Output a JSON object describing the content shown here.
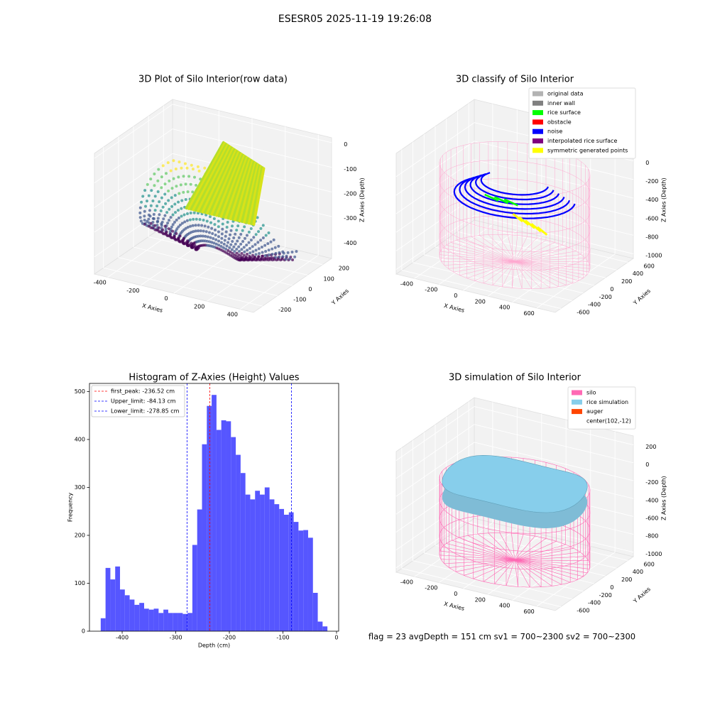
{
  "title": "ESESR05 2025-11-19 19:26:08",
  "footer": "flag = 23  avgDepth = 151 cm  sv1 = 700~2300  sv2 = 700~2300",
  "chart_data": [
    {
      "type": "scatter3d",
      "title": "3D Plot of Silo Interior(row data)",
      "xlabel": "X Axies",
      "ylabel": "Y Axies",
      "zlabel": "Z Axies (Depth)",
      "xlim": [
        -480,
        480
      ],
      "ylim": [
        -260,
        260
      ],
      "zlim": [
        -470,
        20
      ],
      "xticks": [
        -400,
        -200,
        0,
        200,
        400
      ],
      "yticks": [
        -200,
        -100,
        0,
        100,
        200
      ],
      "zticks": [
        -400,
        -300,
        -200,
        -100,
        0
      ]
    },
    {
      "type": "classify3d",
      "title": "3D classify of Silo Interior",
      "xlabel": "X Axies",
      "ylabel": "Y Axies",
      "zlabel": "Z Axies (Depth)",
      "xlim": [
        -550,
        750
      ],
      "ylim": [
        -700,
        700
      ],
      "zlim": [
        -1050,
        250
      ],
      "xticks": [
        -400,
        -200,
        0,
        200,
        400,
        600
      ],
      "yticks": [
        -600,
        -400,
        -200,
        0,
        200,
        400,
        600
      ],
      "zticks": [
        -1000,
        -800,
        -600,
        -400,
        -200,
        0
      ],
      "legend": [
        {
          "name": "original data",
          "color": "#b3b3b3"
        },
        {
          "name": "inner wall",
          "color": "#808080"
        },
        {
          "name": "rice surface",
          "color": "#00ff00"
        },
        {
          "name": "obstacle",
          "color": "#ff0000"
        },
        {
          "name": "noise",
          "color": "#0000ff"
        },
        {
          "name": "interpolated rice surface",
          "color": "#800080"
        },
        {
          "name": "symmetric generated points",
          "color": "#ffff00"
        }
      ]
    },
    {
      "type": "histogram",
      "title": "Histogram of Z-Axies (Height) Values",
      "xlabel": "Depth (cm)",
      "ylabel": "Frequency",
      "color": "#4d4dff",
      "bins": [
        -440,
        -431,
        -422,
        -413,
        -404,
        -395,
        -386,
        -377,
        -368,
        -359,
        -350,
        -341,
        -332,
        -323,
        -314,
        -305,
        -296,
        -287,
        -278,
        -269,
        -260,
        -251,
        -242,
        -233,
        -224,
        -215,
        -206,
        -197,
        -188,
        -179,
        -170,
        -161,
        -152,
        -143,
        -134,
        -125,
        -116,
        -107,
        -98,
        -89,
        -80,
        -71,
        -62,
        -53,
        -44,
        -35,
        -26,
        -17
      ],
      "values": [
        27,
        132,
        108,
        135,
        87,
        75,
        66,
        55,
        59,
        47,
        45,
        47,
        38,
        45,
        38,
        38,
        38,
        36,
        38,
        180,
        254,
        390,
        470,
        493,
        420,
        440,
        438,
        405,
        368,
        330,
        285,
        275,
        293,
        285,
        300,
        275,
        265,
        255,
        243,
        248,
        228,
        210,
        211,
        195,
        80,
        20,
        10
      ],
      "xlim": [
        -461,
        4
      ],
      "ylim": [
        0,
        517
      ],
      "xticks": [
        -400,
        -300,
        -200,
        -100,
        0
      ],
      "yticks": [
        0,
        100,
        200,
        300,
        400,
        500
      ],
      "lines": [
        {
          "label": "first_peak: -236.52 cm",
          "value": -236.52,
          "color": "#ff0000"
        },
        {
          "label": "Upper_limit: -84.13 cm",
          "value": -84.13,
          "color": "#0000ff"
        },
        {
          "label": "Lower_limit: -278.85 cm",
          "value": -278.85,
          "color": "#0000ff"
        }
      ]
    },
    {
      "type": "simulation3d",
      "title": "3D simulation of Silo Interior",
      "xlabel": "X Axies",
      "ylabel": "Y Axies",
      "zlabel": "Z Axies (Depth)",
      "xlim": [
        -550,
        750
      ],
      "ylim": [
        -700,
        700
      ],
      "zlim": [
        -1050,
        300
      ],
      "xticks": [
        -400,
        -200,
        0,
        200,
        400,
        600
      ],
      "yticks": [
        -600,
        -400,
        -200,
        0,
        200,
        400,
        600
      ],
      "zticks": [
        -1000,
        -800,
        -600,
        -400,
        -200,
        0,
        200
      ],
      "legend": [
        {
          "name": "silo",
          "color": "#ff69b4"
        },
        {
          "name": "rice simulation",
          "color": "#87ceeb"
        },
        {
          "name": "auger",
          "color": "#ff4500"
        },
        {
          "name": "center(102,-12)"
        }
      ]
    }
  ]
}
